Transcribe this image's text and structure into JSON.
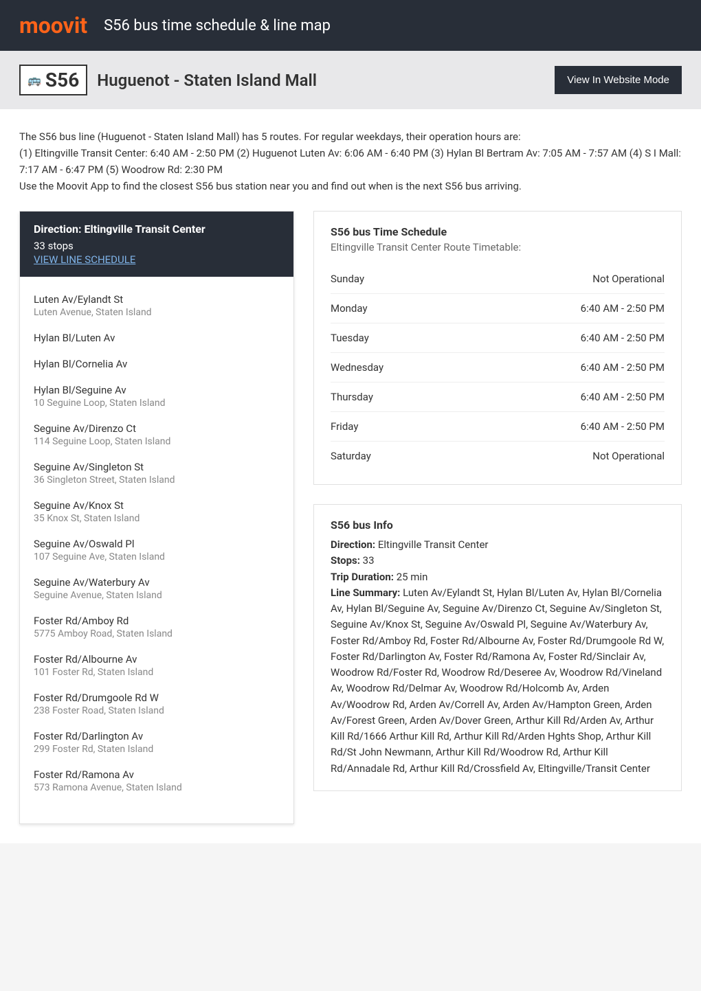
{
  "header": {
    "logo": "moovit",
    "title": "S56 bus time schedule & line map"
  },
  "banner": {
    "route_number": "S56",
    "route_name": "Huguenot - Staten Island Mall",
    "view_button": "View In Website Mode"
  },
  "description": {
    "line1": "The S56 bus line (Huguenot - Staten Island Mall) has 5 routes. For regular weekdays, their operation hours are:",
    "line2": "(1) Eltingville Transit Center: 6:40 AM - 2:50 PM (2) Huguenot Luten Av: 6:06 AM - 6:40 PM (3) Hylan Bl Bertram Av: 7:05 AM - 7:57 AM (4) S I Mall: 7:17 AM - 6:47 PM (5) Woodrow Rd: 2:30 PM",
    "line3": "Use the Moovit App to find the closest S56 bus station near you and find out when is the next S56 bus arriving."
  },
  "direction": {
    "title": "Direction: Eltingville Transit Center",
    "stops_count": "33 stops",
    "view_schedule": "VIEW LINE SCHEDULE"
  },
  "stops": [
    {
      "name": "Luten Av/Eylandt St",
      "address": "Luten Avenue, Staten Island"
    },
    {
      "name": "Hylan Bl/Luten Av",
      "address": ""
    },
    {
      "name": "Hylan Bl/Cornelia Av",
      "address": ""
    },
    {
      "name": "Hylan Bl/Seguine Av",
      "address": "10 Seguine Loop, Staten Island"
    },
    {
      "name": "Seguine Av/Direnzo Ct",
      "address": "114 Seguine Loop, Staten Island"
    },
    {
      "name": "Seguine Av/Singleton St",
      "address": "36 Singleton Street, Staten Island"
    },
    {
      "name": "Seguine Av/Knox St",
      "address": "35 Knox St, Staten Island"
    },
    {
      "name": "Seguine Av/Oswald Pl",
      "address": "107 Seguine Ave, Staten Island"
    },
    {
      "name": "Seguine Av/Waterbury Av",
      "address": "Seguine Avenue, Staten Island"
    },
    {
      "name": "Foster Rd/Amboy Rd",
      "address": "5775 Amboy Road, Staten Island"
    },
    {
      "name": "Foster Rd/Albourne Av",
      "address": "101 Foster Rd, Staten Island"
    },
    {
      "name": "Foster Rd/Drumgoole Rd W",
      "address": "238 Foster Road, Staten Island"
    },
    {
      "name": "Foster Rd/Darlington Av",
      "address": "299 Foster Rd, Staten Island"
    },
    {
      "name": "Foster Rd/Ramona Av",
      "address": "573 Ramona Avenue, Staten Island"
    }
  ],
  "schedule": {
    "title": "S56 bus Time Schedule",
    "subtitle": "Eltingville Transit Center Route Timetable:",
    "rows": [
      {
        "day": "Sunday",
        "hours": "Not Operational"
      },
      {
        "day": "Monday",
        "hours": "6:40 AM - 2:50 PM"
      },
      {
        "day": "Tuesday",
        "hours": "6:40 AM - 2:50 PM"
      },
      {
        "day": "Wednesday",
        "hours": "6:40 AM - 2:50 PM"
      },
      {
        "day": "Thursday",
        "hours": "6:40 AM - 2:50 PM"
      },
      {
        "day": "Friday",
        "hours": "6:40 AM - 2:50 PM"
      },
      {
        "day": "Saturday",
        "hours": "Not Operational"
      }
    ]
  },
  "info": {
    "title": "S56 bus Info",
    "direction_label": "Direction:",
    "direction_value": " Eltingville Transit Center",
    "stops_label": "Stops:",
    "stops_value": " 33",
    "duration_label": "Trip Duration:",
    "duration_value": " 25 min",
    "summary_label": "Line Summary:",
    "summary_value": " Luten Av/Eylandt St, Hylan Bl/Luten Av, Hylan Bl/Cornelia Av, Hylan Bl/Seguine Av, Seguine Av/Direnzo Ct, Seguine Av/Singleton St, Seguine Av/Knox St, Seguine Av/Oswald Pl, Seguine Av/Waterbury Av, Foster Rd/Amboy Rd, Foster Rd/Albourne Av, Foster Rd/Drumgoole Rd W, Foster Rd/Darlington Av, Foster Rd/Ramona Av, Foster Rd/Sinclair Av, Woodrow Rd/Foster Rd, Woodrow Rd/Deseree Av, Woodrow Rd/Vineland Av, Woodrow Rd/Delmar Av, Woodrow Rd/Holcomb Av, Arden Av/Woodrow Rd, Arden Av/Correll Av, Arden Av/Hampton Green, Arden Av/Forest Green, Arden Av/Dover Green, Arthur Kill Rd/Arden Av, Arthur Kill Rd/1666 Arthur Kill Rd, Arthur Kill Rd/Arden Hghts Shop, Arthur Kill Rd/St John Newmann, Arthur Kill Rd/Woodrow Rd, Arthur Kill Rd/Annadale Rd, Arthur Kill Rd/Crossfield Av, Eltingville/Transit Center"
  },
  "colors": {
    "header_bg": "#282e38",
    "accent": "#ff6319",
    "link": "#7fb3e8",
    "text": "#333333",
    "text_muted": "#888888",
    "border": "#e0e0e0"
  }
}
